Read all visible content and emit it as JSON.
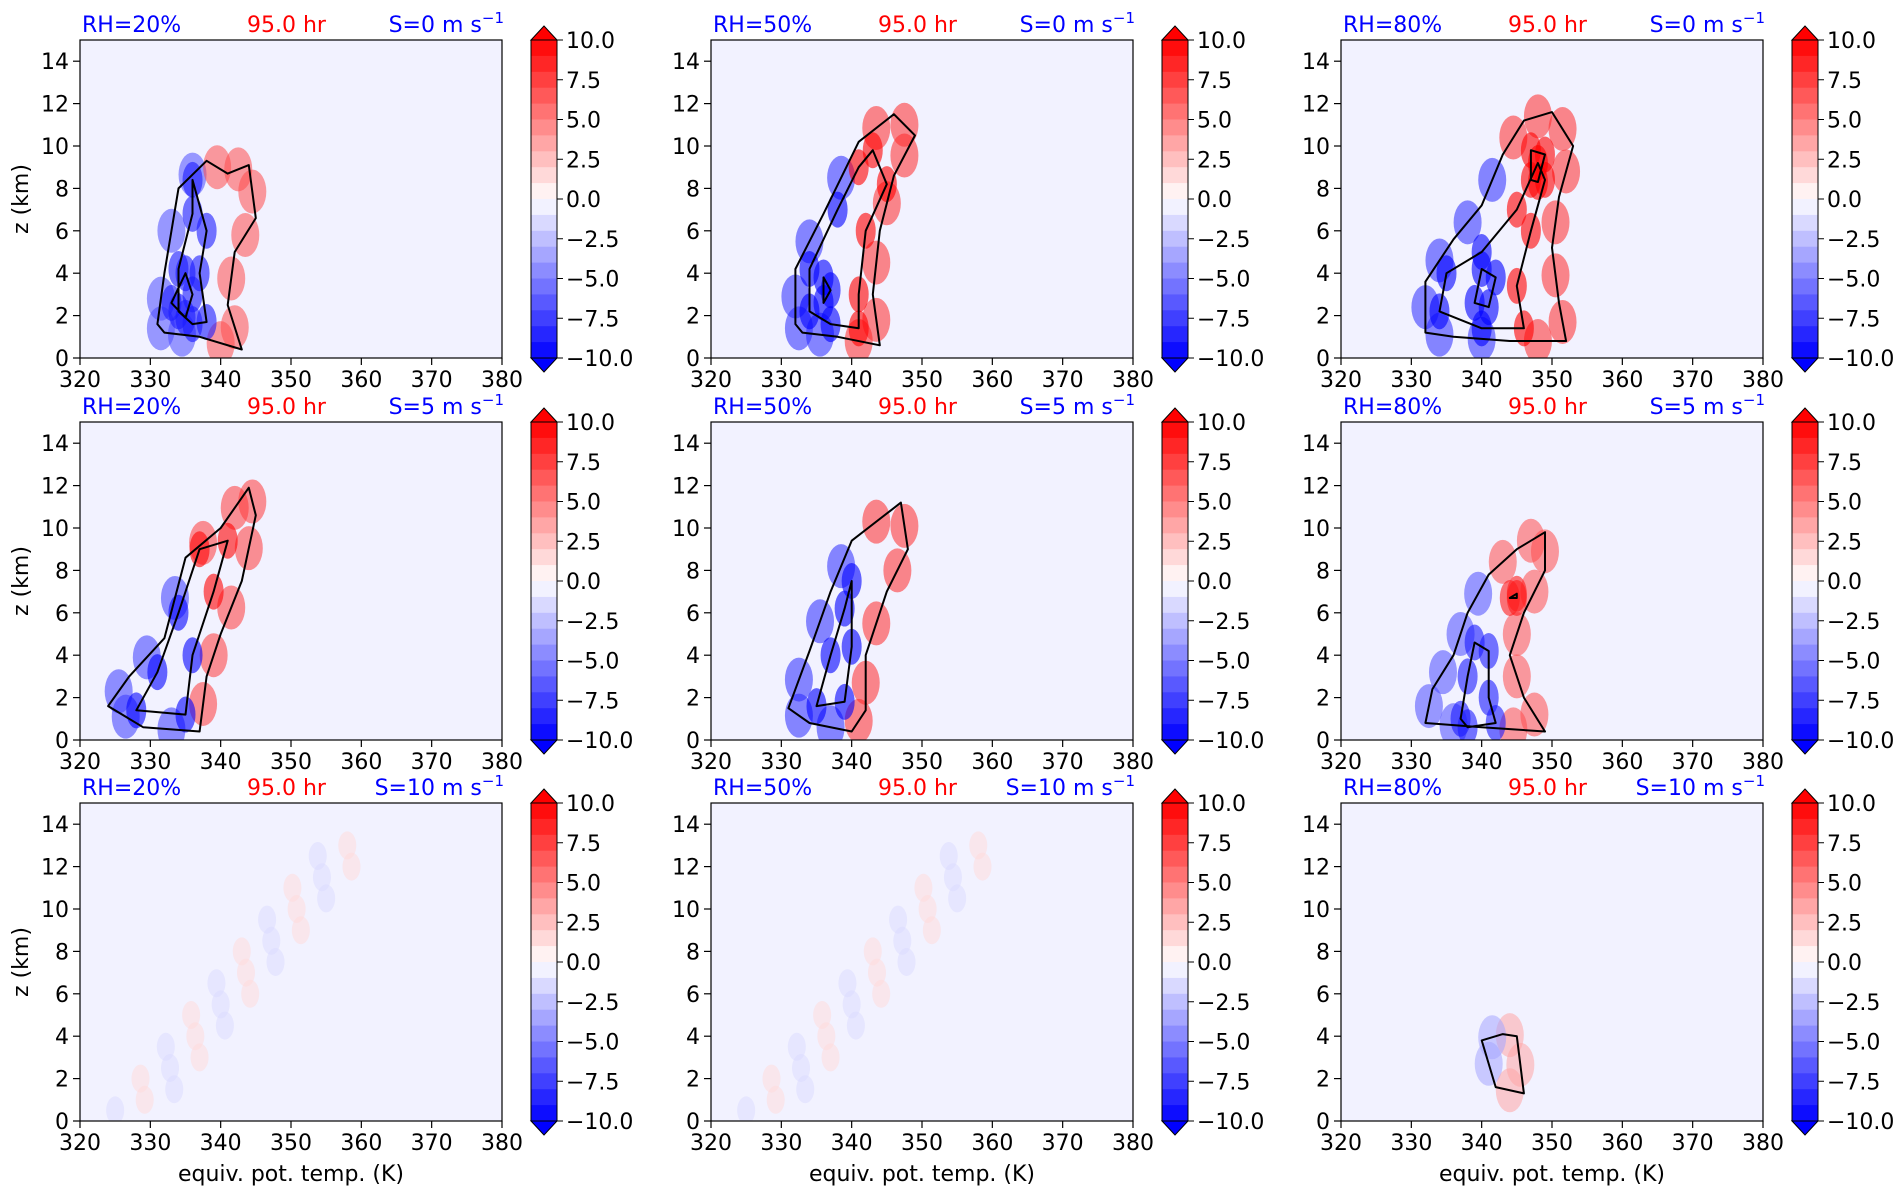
{
  "figure": {
    "xlabel": "equiv. pot. temp. (K)",
    "ylabel": "z (km)"
  },
  "colors": {
    "rh_label": "#0000ff",
    "time_label": "#ff0000",
    "shear_label": "#0000ff",
    "background": "#f2f2ff",
    "contour_line": "#000000"
  },
  "colorbar": {
    "ticks": [
      "10.0",
      "7.5",
      "5.0",
      "2.5",
      "0.0",
      "−2.5",
      "−5.0",
      "−7.5",
      "−10.0"
    ],
    "values": [
      10.0,
      7.5,
      5.0,
      2.5,
      0.0,
      -2.5,
      -5.0,
      -7.5,
      -10.0
    ],
    "range": [
      -10,
      10
    ],
    "extend": "both",
    "cmap": "bwr"
  },
  "chart_data": [
    {
      "type": "heatmap",
      "rh": "RH=20%",
      "time": "95.0 hr",
      "shear": "S=0 m s",
      "shear_exp": "−1",
      "xticks": [
        "320",
        "330",
        "340",
        "350",
        "360",
        "370",
        "380"
      ],
      "yticks": [
        "0",
        "2",
        "4",
        "6",
        "8",
        "10",
        "12",
        "14"
      ],
      "xlim": [
        320,
        380
      ],
      "ylim": [
        0,
        15
      ],
      "anomaly_strength": 1.0,
      "contours": [
        [
          [
            331,
            1.6
          ],
          [
            332,
            4.0
          ],
          [
            334,
            8.0
          ],
          [
            338,
            9.3
          ],
          [
            341,
            8.7
          ],
          [
            344,
            9.1
          ],
          [
            345,
            6.6
          ],
          [
            342,
            5.0
          ],
          [
            341,
            2.5
          ],
          [
            343,
            0.4
          ],
          [
            337,
            1.0
          ],
          [
            332,
            1.2
          ]
        ],
        [
          [
            334,
            2.2
          ],
          [
            334,
            4.2
          ],
          [
            336,
            6.8
          ],
          [
            336,
            8.4
          ],
          [
            338,
            6.0
          ],
          [
            337,
            4.0
          ],
          [
            338,
            1.7
          ],
          [
            336,
            1.6
          ]
        ],
        [
          [
            333,
            2.6
          ],
          [
            335,
            4.0
          ],
          [
            336,
            3.0
          ],
          [
            335,
            1.9
          ]
        ]
      ]
    },
    {
      "type": "heatmap",
      "rh": "RH=50%",
      "time": "95.0 hr",
      "shear": "S=0 m s",
      "shear_exp": "−1",
      "xticks": [
        "320",
        "330",
        "340",
        "350",
        "360",
        "370",
        "380"
      ],
      "yticks": [
        "0",
        "2",
        "4",
        "6",
        "8",
        "10",
        "12",
        "14"
      ],
      "xlim": [
        320,
        380
      ],
      "ylim": [
        0,
        15
      ],
      "anomaly_strength": 1.2,
      "contours": [
        [
          [
            332,
            1.6
          ],
          [
            332,
            4.2
          ],
          [
            336,
            6.8
          ],
          [
            341,
            10.2
          ],
          [
            346,
            11.5
          ],
          [
            349,
            10.5
          ],
          [
            346,
            8.6
          ],
          [
            344,
            6.0
          ],
          [
            343,
            3.0
          ],
          [
            344,
            0.6
          ],
          [
            338,
            1.0
          ],
          [
            333,
            1.2
          ]
        ],
        [
          [
            334,
            2.2
          ],
          [
            334,
            4.2
          ],
          [
            338,
            7.0
          ],
          [
            341,
            9.0
          ],
          [
            343,
            9.8
          ],
          [
            345,
            8.2
          ],
          [
            342,
            6.0
          ],
          [
            341,
            3.0
          ],
          [
            341,
            1.4
          ],
          [
            337,
            1.6
          ]
        ],
        [
          [
            336,
            2.6
          ],
          [
            336,
            3.8
          ],
          [
            337,
            3.2
          ]
        ]
      ]
    },
    {
      "type": "heatmap",
      "rh": "RH=80%",
      "time": "95.0 hr",
      "shear": "S=0 m s",
      "shear_exp": "−1",
      "xticks": [
        "320",
        "330",
        "340",
        "350",
        "360",
        "370",
        "380"
      ],
      "yticks": [
        "0",
        "2",
        "4",
        "6",
        "8",
        "10",
        "12",
        "14"
      ],
      "xlim": [
        320,
        380
      ],
      "ylim": [
        0,
        15
      ],
      "anomaly_strength": 1.2,
      "contours": [
        [
          [
            332,
            1.2
          ],
          [
            332,
            3.6
          ],
          [
            336,
            5.6
          ],
          [
            340,
            7.2
          ],
          [
            343,
            9.6
          ],
          [
            346,
            11.2
          ],
          [
            350,
            11.6
          ],
          [
            353,
            10.0
          ],
          [
            351,
            7.6
          ],
          [
            350,
            5.2
          ],
          [
            351,
            2.6
          ],
          [
            352,
            0.8
          ],
          [
            344,
            0.8
          ],
          [
            336,
            1.0
          ]
        ],
        [
          [
            334,
            2.2
          ],
          [
            335,
            4.0
          ],
          [
            340,
            5.0
          ],
          [
            345,
            7.0
          ],
          [
            348,
            9.2
          ],
          [
            349,
            8.4
          ],
          [
            347,
            6.0
          ],
          [
            345,
            3.4
          ],
          [
            346,
            1.4
          ],
          [
            340,
            1.4
          ]
        ],
        [
          [
            339,
            2.6
          ],
          [
            340,
            4.2
          ],
          [
            342,
            3.8
          ],
          [
            341,
            2.4
          ]
        ],
        [
          [
            347,
            8.4
          ],
          [
            347,
            9.8
          ],
          [
            349,
            9.6
          ],
          [
            348,
            8.3
          ]
        ]
      ]
    },
    {
      "type": "heatmap",
      "rh": "RH=20%",
      "time": "95.0 hr",
      "shear": "S=5 m s",
      "shear_exp": "−1",
      "xticks": [
        "320",
        "330",
        "340",
        "350",
        "360",
        "370",
        "380"
      ],
      "yticks": [
        "0",
        "2",
        "4",
        "6",
        "8",
        "10",
        "12",
        "14"
      ],
      "xlim": [
        320,
        380
      ],
      "ylim": [
        0,
        15
      ],
      "anomaly_strength": 1.1,
      "contours": [
        [
          [
            324,
            1.6
          ],
          [
            327,
            3.0
          ],
          [
            332,
            4.8
          ],
          [
            335,
            8.6
          ],
          [
            340,
            10.0
          ],
          [
            344,
            11.9
          ],
          [
            345,
            10.6
          ],
          [
            343,
            7.5
          ],
          [
            340,
            5.0
          ],
          [
            338,
            3.0
          ],
          [
            337,
            0.4
          ],
          [
            329,
            0.6
          ]
        ],
        [
          [
            328,
            1.4
          ],
          [
            331,
            3.2
          ],
          [
            334,
            6.0
          ],
          [
            337,
            9.0
          ],
          [
            341,
            9.4
          ],
          [
            339,
            7.0
          ],
          [
            336,
            4.0
          ],
          [
            335,
            1.2
          ]
        ]
      ]
    },
    {
      "type": "heatmap",
      "rh": "RH=50%",
      "time": "95.0 hr",
      "shear": "S=5 m s",
      "shear_exp": "−1",
      "xticks": [
        "320",
        "330",
        "340",
        "350",
        "360",
        "370",
        "380"
      ],
      "yticks": [
        "0",
        "2",
        "4",
        "6",
        "8",
        "10",
        "12",
        "14"
      ],
      "xlim": [
        320,
        380
      ],
      "ylim": [
        0,
        15
      ],
      "anomaly_strength": 1.2,
      "contours": [
        [
          [
            331,
            1.5
          ],
          [
            334,
            4.2
          ],
          [
            337,
            7.0
          ],
          [
            340,
            9.4
          ],
          [
            347,
            11.2
          ],
          [
            348,
            9.0
          ],
          [
            345,
            7.0
          ],
          [
            342,
            4.0
          ],
          [
            342,
            1.4
          ],
          [
            340,
            0.4
          ],
          [
            334,
            0.8
          ]
        ],
        [
          [
            335,
            1.6
          ],
          [
            337,
            4.0
          ],
          [
            339,
            6.2
          ],
          [
            340,
            7.5
          ],
          [
            340,
            4.4
          ],
          [
            339,
            1.8
          ]
        ]
      ]
    },
    {
      "type": "heatmap",
      "rh": "RH=80%",
      "time": "95.0 hr",
      "shear": "S=5 m s",
      "shear_exp": "−1",
      "xticks": [
        "320",
        "330",
        "340",
        "350",
        "360",
        "370",
        "380"
      ],
      "yticks": [
        "0",
        "2",
        "4",
        "6",
        "8",
        "10",
        "12",
        "14"
      ],
      "xlim": [
        320,
        380
      ],
      "ylim": [
        0,
        15
      ],
      "anomaly_strength": 1.0,
      "contours": [
        [
          [
            332,
            0.8
          ],
          [
            333,
            2.4
          ],
          [
            336,
            4.0
          ],
          [
            338,
            6.0
          ],
          [
            341,
            7.8
          ],
          [
            345,
            9.0
          ],
          [
            349,
            9.8
          ],
          [
            349,
            8.0
          ],
          [
            346,
            6.0
          ],
          [
            344,
            4.0
          ],
          [
            346,
            2.0
          ],
          [
            349,
            0.4
          ],
          [
            340,
            0.6
          ]
        ],
        [
          [
            337,
            1.0
          ],
          [
            338,
            3.0
          ],
          [
            339,
            4.6
          ],
          [
            341,
            4.2
          ],
          [
            341,
            2.0
          ],
          [
            342,
            0.8
          ],
          [
            338,
            0.6
          ]
        ],
        [
          [
            344,
            6.7
          ],
          [
            345,
            6.9
          ],
          [
            345,
            6.7
          ]
        ]
      ]
    },
    {
      "type": "heatmap",
      "rh": "RH=20%",
      "time": "95.0 hr",
      "shear": "S=10 m s",
      "shear_exp": "−1",
      "xticks": [
        "320",
        "330",
        "340",
        "350",
        "360",
        "370",
        "380"
      ],
      "yticks": [
        "0",
        "2",
        "4",
        "6",
        "8",
        "10",
        "12",
        "14"
      ],
      "xlim": [
        320,
        380
      ],
      "ylim": [
        0,
        15
      ],
      "anomaly_strength": 0.2,
      "contours": []
    },
    {
      "type": "heatmap",
      "rh": "RH=50%",
      "time": "95.0 hr",
      "shear": "S=10 m s",
      "shear_exp": "−1",
      "xticks": [
        "320",
        "330",
        "340",
        "350",
        "360",
        "370",
        "380"
      ],
      "yticks": [
        "0",
        "2",
        "4",
        "6",
        "8",
        "10",
        "12",
        "14"
      ],
      "xlim": [
        320,
        380
      ],
      "ylim": [
        0,
        15
      ],
      "anomaly_strength": 0.2,
      "contours": []
    },
    {
      "type": "heatmap",
      "rh": "RH=80%",
      "time": "95.0 hr",
      "shear": "S=10 m s",
      "shear_exp": "−1",
      "xticks": [
        "320",
        "330",
        "340",
        "350",
        "360",
        "370",
        "380"
      ],
      "yticks": [
        "0",
        "2",
        "4",
        "6",
        "8",
        "10",
        "12",
        "14"
      ],
      "xlim": [
        320,
        380
      ],
      "ylim": [
        0,
        15
      ],
      "anomaly_strength": 0.5,
      "contours": [
        [
          [
            340,
            3.8
          ],
          [
            342,
            1.6
          ],
          [
            346,
            1.3
          ],
          [
            345,
            4.0
          ],
          [
            343,
            4.1
          ]
        ]
      ]
    }
  ]
}
